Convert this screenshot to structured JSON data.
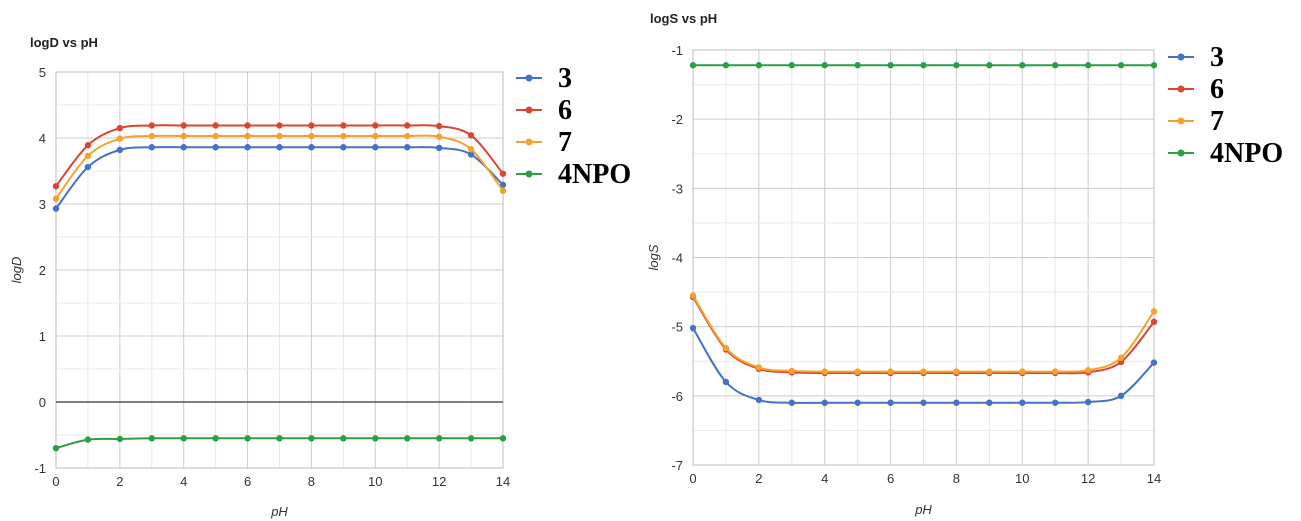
{
  "chart_data": [
    {
      "type": "line",
      "title": "logD vs pH",
      "xlabel": "pH",
      "ylabel": "logD",
      "xlim": [
        0,
        14
      ],
      "ylim": [
        -1,
        5
      ],
      "xticks": [
        0,
        2,
        4,
        6,
        8,
        10,
        12,
        14
      ],
      "yticks": [
        -1,
        0,
        1,
        2,
        3,
        4,
        5
      ],
      "grid": true,
      "zero_line": true,
      "legend": "right",
      "x": [
        0,
        1,
        2,
        3,
        4,
        5,
        6,
        7,
        8,
        9,
        10,
        11,
        12,
        13,
        14
      ],
      "series": [
        {
          "name": "3",
          "color": "#4472c4",
          "values": [
            2.93,
            3.56,
            3.82,
            3.86,
            3.86,
            3.86,
            3.86,
            3.86,
            3.86,
            3.86,
            3.86,
            3.86,
            3.85,
            3.75,
            3.29
          ]
        },
        {
          "name": "6",
          "color": "#db4437",
          "values": [
            3.27,
            3.89,
            4.15,
            4.19,
            4.19,
            4.19,
            4.19,
            4.19,
            4.19,
            4.19,
            4.19,
            4.19,
            4.18,
            4.04,
            3.46
          ]
        },
        {
          "name": "7",
          "color": "#f4a22d",
          "values": [
            3.08,
            3.73,
            3.99,
            4.03,
            4.03,
            4.03,
            4.03,
            4.03,
            4.03,
            4.03,
            4.03,
            4.03,
            4.02,
            3.83,
            3.2
          ]
        },
        {
          "name": "4NPO",
          "color": "#2e9e45",
          "values": [
            -0.7,
            -0.57,
            -0.56,
            -0.55,
            -0.55,
            -0.55,
            -0.55,
            -0.55,
            -0.55,
            -0.55,
            -0.55,
            -0.55,
            -0.55,
            -0.55,
            -0.55
          ]
        }
      ]
    },
    {
      "type": "line",
      "title": "logS vs pH",
      "xlabel": "pH",
      "ylabel": "logS",
      "xlim": [
        0,
        14
      ],
      "ylim": [
        -7,
        -1
      ],
      "xticks": [
        0,
        2,
        4,
        6,
        8,
        10,
        12,
        14
      ],
      "yticks": [
        -7,
        -6,
        -5,
        -4,
        -3,
        -2,
        -1
      ],
      "grid": true,
      "zero_line": false,
      "legend": "right",
      "x": [
        0,
        1,
        2,
        3,
        4,
        5,
        6,
        7,
        8,
        9,
        10,
        11,
        12,
        13,
        14
      ],
      "series": [
        {
          "name": "3",
          "color": "#4472c4",
          "values": [
            -5.02,
            -5.8,
            -6.06,
            -6.1,
            -6.1,
            -6.1,
            -6.1,
            -6.1,
            -6.1,
            -6.1,
            -6.1,
            -6.1,
            -6.09,
            -6.0,
            -5.52
          ]
        },
        {
          "name": "6",
          "color": "#db4437",
          "values": [
            -4.57,
            -5.33,
            -5.61,
            -5.66,
            -5.67,
            -5.67,
            -5.67,
            -5.67,
            -5.67,
            -5.67,
            -5.67,
            -5.67,
            -5.66,
            -5.51,
            -4.93
          ]
        },
        {
          "name": "7",
          "color": "#f4a22d",
          "values": [
            -4.55,
            -5.31,
            -5.59,
            -5.64,
            -5.65,
            -5.65,
            -5.65,
            -5.65,
            -5.65,
            -5.65,
            -5.65,
            -5.65,
            -5.63,
            -5.45,
            -4.78
          ]
        },
        {
          "name": "4NPO",
          "color": "#2e9e45",
          "values": [
            -1.22,
            -1.22,
            -1.22,
            -1.22,
            -1.22,
            -1.22,
            -1.22,
            -1.22,
            -1.22,
            -1.22,
            -1.22,
            -1.22,
            -1.22,
            -1.22,
            -1.22
          ]
        }
      ]
    }
  ]
}
